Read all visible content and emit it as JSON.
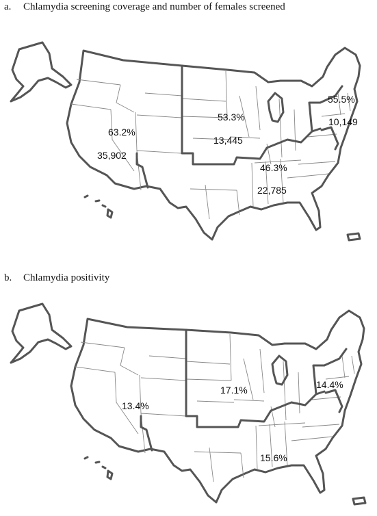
{
  "panel_a": {
    "label": "a.",
    "title": "Chlamydia screening coverage and number of females screened",
    "regions": [
      {
        "id": "west",
        "coverage": "63.2%",
        "screened": "35,902"
      },
      {
        "id": "midwest",
        "coverage": "53.3%",
        "screened": "13,445"
      },
      {
        "id": "south",
        "coverage": "46.3%",
        "screened": "22,785"
      },
      {
        "id": "northeast",
        "coverage": "55.5%",
        "screened": "10,149"
      }
    ]
  },
  "panel_b": {
    "label": "b.",
    "title": "Chlamydia positivity",
    "regions": [
      {
        "id": "west",
        "positivity": "13.4%"
      },
      {
        "id": "midwest",
        "positivity": "17.1%"
      },
      {
        "id": "northeast",
        "positivity": "14.4%"
      },
      {
        "id": "south",
        "positivity": "15.6%"
      }
    ]
  },
  "colors": {
    "region_border": "#555555",
    "state_border": "#888888"
  }
}
